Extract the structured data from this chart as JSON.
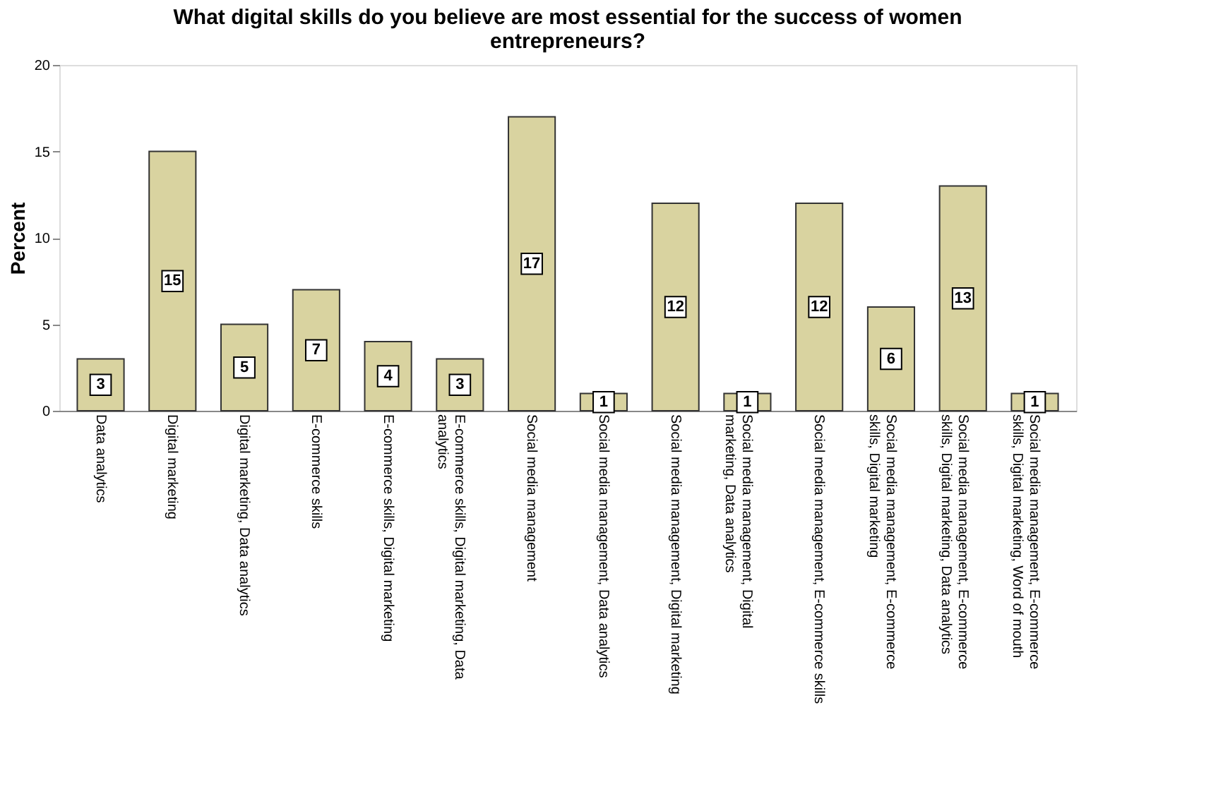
{
  "chart_data": {
    "type": "bar",
    "title": "What digital skills do you believe are most essential for the success of women entrepreneurs?",
    "ylabel": "Percent",
    "categories": [
      "Data analytics",
      "Digital marketing",
      "Digital marketing, Data analytics",
      "E-commerce skills",
      "E-commerce skills, Digital marketing",
      "E-commerce skills, Digital marketing, Data analytics",
      "Social media management",
      "Social media management, Data analytics",
      "Social media management, Digital marketing",
      "Social media management, Digital marketing, Data analytics",
      "Social media management, E-commerce skills",
      "Social media management, E-commerce skills, Digital marketing",
      "Social media management, E-commerce skills, Digital marketing, Data analytics",
      "Social media management, E-commerce skills, Digital marketing, Word of mouth"
    ],
    "values": [
      3,
      15,
      5,
      7,
      4,
      3,
      17,
      1,
      12,
      1,
      12,
      6,
      13,
      1
    ],
    "color": "#d9d3a0",
    "ylim": [
      0,
      20
    ],
    "yticks": [
      0,
      5,
      10,
      15,
      20
    ],
    "grid": false,
    "data_labels": true
  }
}
